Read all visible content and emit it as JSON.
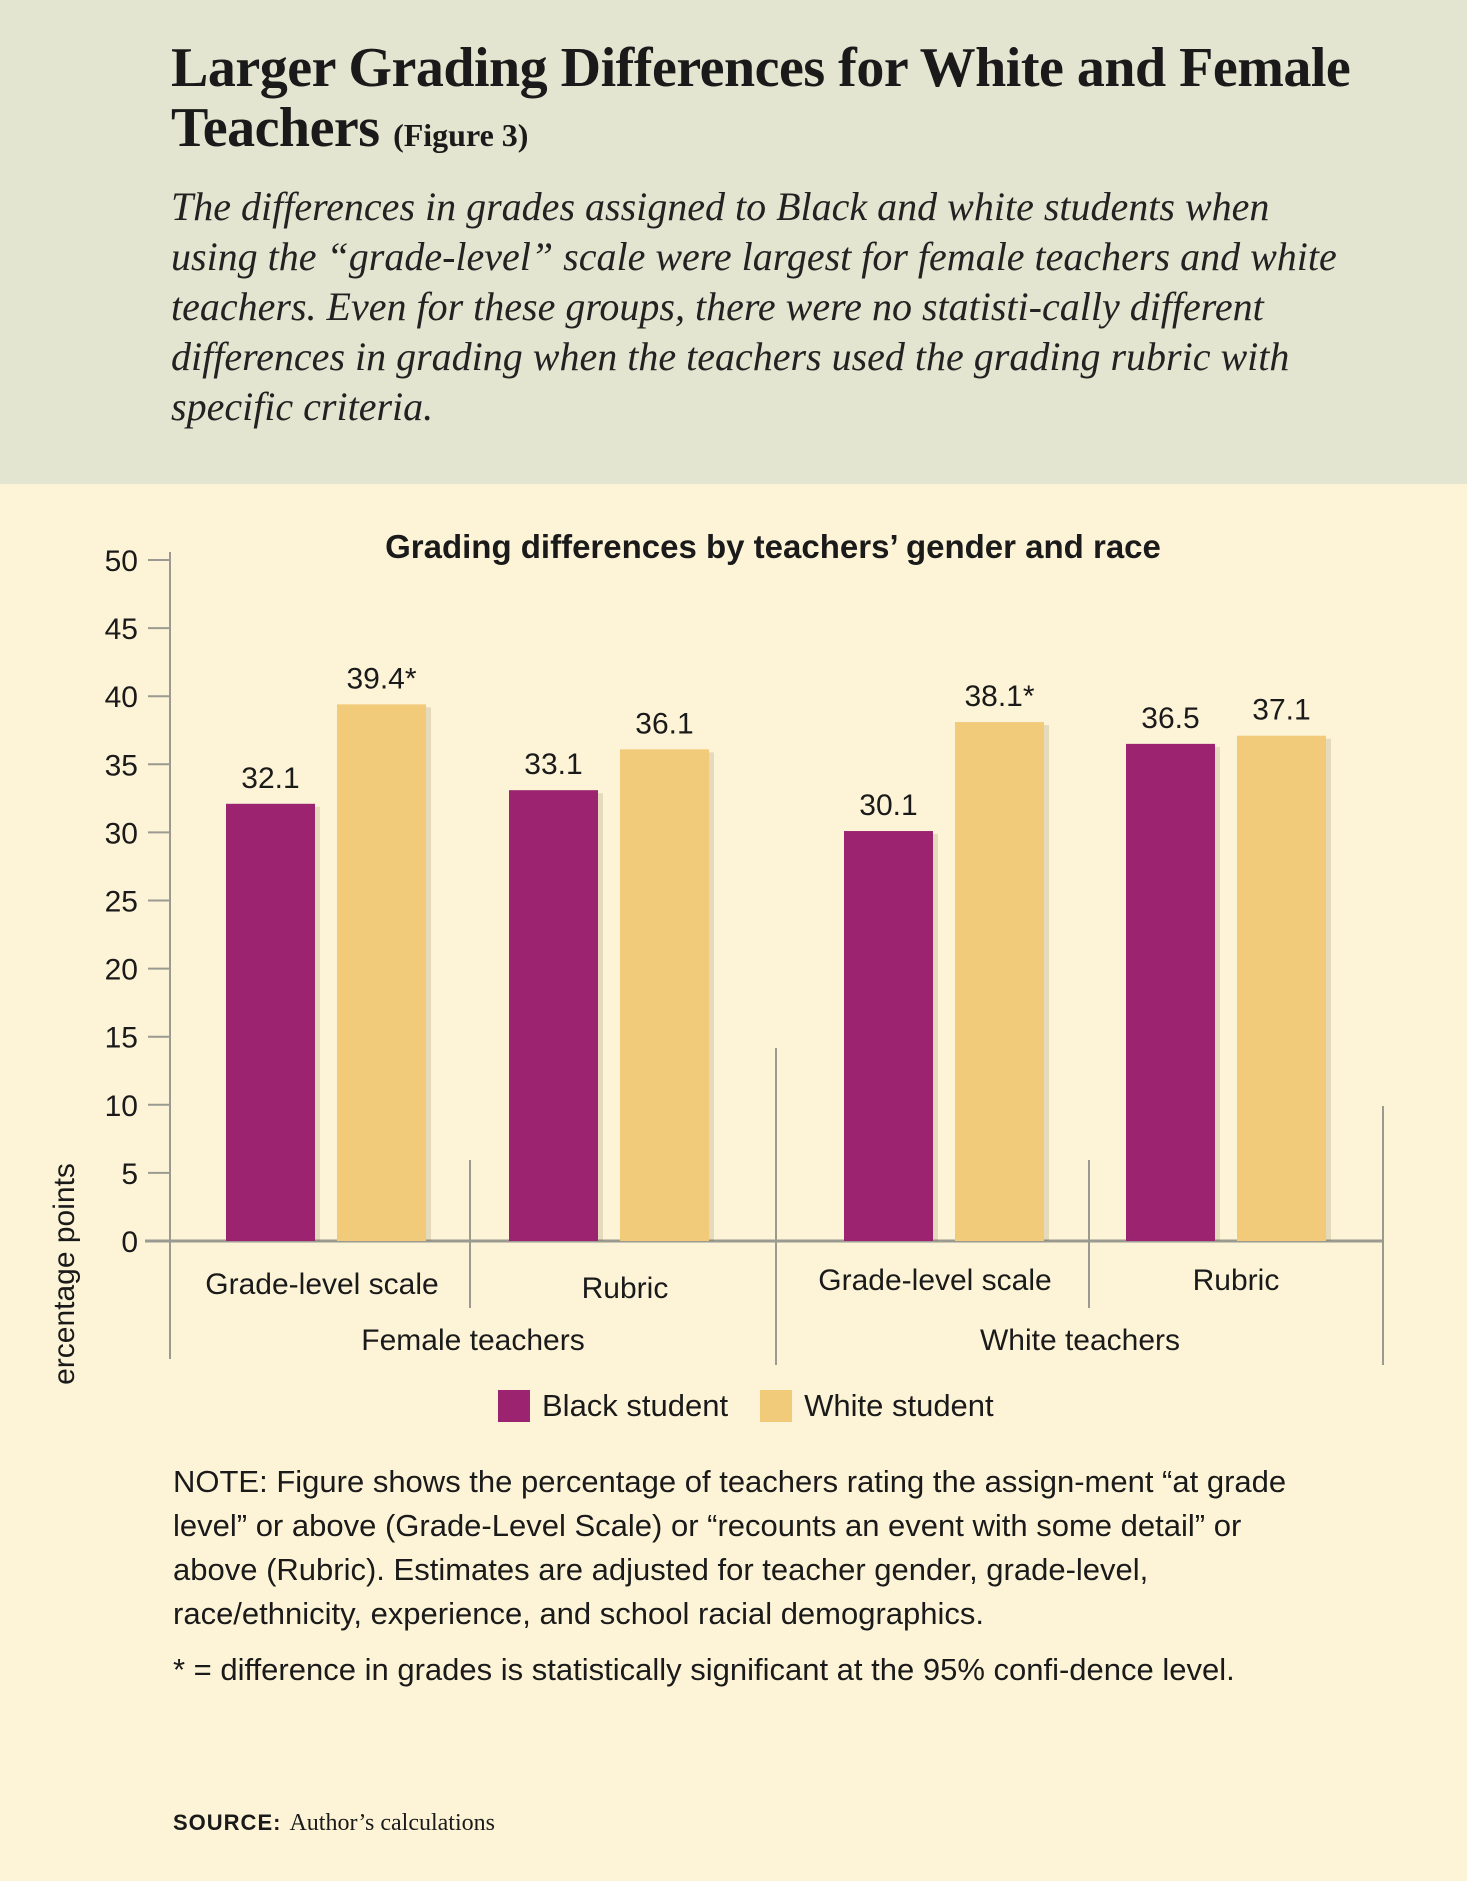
{
  "header": {
    "title_main": "Larger Grading Differences for White and Female Teachers",
    "title_fig": "(Figure 3)",
    "subtitle": "The differences in grades assigned to Black and white students when using the “grade-level” scale were largest for female teachers and white teachers. Even for these groups, there were no statisti-cally different differences in grading when the teachers used the grading rubric with specific criteria."
  },
  "chart_data": {
    "type": "bar",
    "title": "Grading differences by teachers’ gender and race",
    "ylabel": "Percentage points",
    "xlabel": "",
    "ylim": [
      0,
      50
    ],
    "yticks": [
      0,
      5,
      10,
      15,
      20,
      25,
      30,
      35,
      40,
      45,
      50
    ],
    "groups": [
      {
        "name": "Female teachers",
        "categories": [
          "Grade-level scale",
          "Rubric"
        ]
      },
      {
        "name": "White teachers",
        "categories": [
          "Grade-level scale",
          "Rubric"
        ]
      }
    ],
    "categories": [
      "Grade-level scale",
      "Rubric",
      "Grade-level scale",
      "Rubric"
    ],
    "series": [
      {
        "name": "Black student",
        "color": "#9b2370",
        "values": [
          32.1,
          33.1,
          30.1,
          36.5
        ],
        "labels": [
          "32.1",
          "33.1",
          "30.1",
          "36.5"
        ]
      },
      {
        "name": "White student",
        "color": "#f1cb7a",
        "values": [
          39.4,
          36.1,
          38.1,
          37.1
        ],
        "labels": [
          "39.4*",
          "36.1",
          "38.1*",
          "37.1"
        ]
      }
    ],
    "legend_position": "bottom-center",
    "grid": false
  },
  "notes": {
    "note": "NOTE: Figure shows the percentage of teachers rating the assign-ment “at grade level” or above (Grade-Level Scale) or “recounts an event with some detail” or above (Rubric). Estimates are adjusted for teacher gender, grade-level, race/ethnicity, experience, and school racial demographics.",
    "significance": "* = difference in grades is statistically significant at the 95% confi-dence level.",
    "source_label": "SOURCE:",
    "source_text": "Author’s calculations"
  }
}
